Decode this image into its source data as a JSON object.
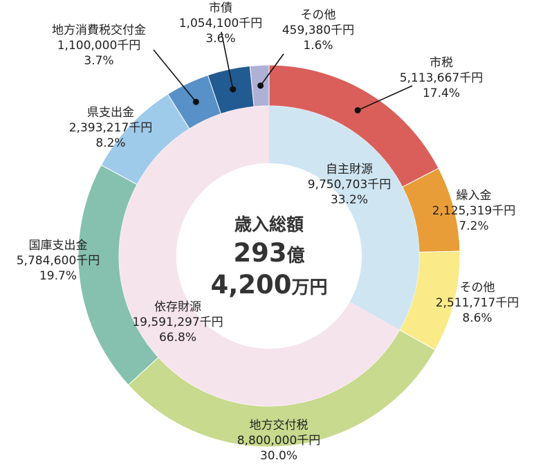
{
  "chart_data": {
    "type": "pie",
    "style": "double-donut",
    "title": "歳入総額",
    "total": {
      "number": "293",
      "unit1": "億",
      "number2": "4,200",
      "unit2": "万円"
    },
    "outer_ring": [
      {
        "label": "市税",
        "amount": "5,113,667千円",
        "percent": "17.4%",
        "value": 17.4,
        "color": "#da5f5a"
      },
      {
        "label": "繰入金",
        "amount": "2,125,319千円",
        "percent": "7.2%",
        "value": 7.2,
        "color": "#e89d38"
      },
      {
        "label": "その他",
        "amount": "2,511,717千円",
        "percent": "8.6%",
        "value": 8.6,
        "color": "#fbea88"
      },
      {
        "label": "地方交付税",
        "amount": "8,800,000千円",
        "percent": "30.0%",
        "value": 30.0,
        "color": "#c7da8d"
      },
      {
        "label": "国庫支出金",
        "amount": "5,784,600千円",
        "percent": "19.7%",
        "value": 19.7,
        "color": "#85c1ae"
      },
      {
        "label": "県支出金",
        "amount": "2,393,217千円",
        "percent": "8.2%",
        "value": 8.2,
        "color": "#9fcbeb"
      },
      {
        "label": "地方消費税交付金",
        "amount": "1,100,000千円",
        "percent": "3.7%",
        "value": 3.7,
        "color": "#5890c8"
      },
      {
        "label": "市債",
        "amount": "1,054,100千円",
        "percent": "3.6%",
        "value": 3.6,
        "color": "#225a92"
      },
      {
        "label": "その他",
        "amount": "459,380千円",
        "percent": "1.6%",
        "value": 1.6,
        "color": "#aeb0d6"
      }
    ],
    "inner_ring": [
      {
        "label": "自主財源",
        "amount": "9,750,703千円",
        "percent": "33.2%",
        "value": 33.2,
        "color": "#cfe5f2"
      },
      {
        "label": "依存財源",
        "amount": "19,591,297千円",
        "percent": "66.8%",
        "value": 66.8,
        "color": "#f6e4ec"
      }
    ]
  }
}
